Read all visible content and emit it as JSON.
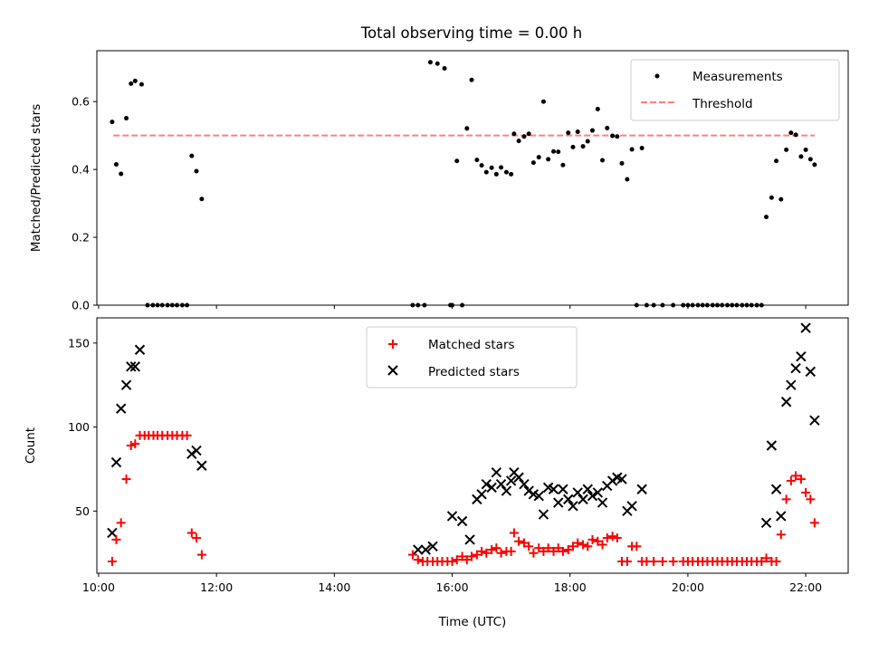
{
  "title": "Total observing time = 0.00 h",
  "colors": {
    "threshold": "#ff7f7f",
    "matched": "#ff0000",
    "predicted": "#000000",
    "measurement": "#000000"
  },
  "chart_data": [
    {
      "type": "scatter",
      "ylabel": "Matched/Predicted stars",
      "xlim_hours": [
        9.97,
        22.72
      ],
      "ylim": [
        0,
        0.75
      ],
      "yticks": [
        0.0,
        0.2,
        0.4,
        0.6
      ],
      "ytick_labels": [
        "0.0",
        "0.2",
        "0.4",
        "0.6"
      ],
      "xtick_hours": [
        10,
        12,
        14,
        16,
        18,
        20,
        22
      ],
      "legend": {
        "placement": "upper right",
        "entries": [
          "Measurements",
          "Threshold"
        ]
      },
      "threshold": {
        "name": "Threshold",
        "y": 0.5,
        "x_start_hour": 10.25,
        "x_end_hour": 22.15
      },
      "measurements": {
        "name": "Measurements",
        "x_hours": [
          10.23,
          10.3,
          10.38,
          10.47,
          10.55,
          10.62,
          10.73,
          10.83,
          10.92,
          11.0,
          11.08,
          11.17,
          11.25,
          11.33,
          11.42,
          11.5,
          11.58,
          11.66,
          11.75,
          15.33,
          15.42,
          15.53,
          15.63,
          15.75,
          15.87,
          15.97,
          16.0,
          16.08,
          16.17,
          16.25,
          16.33,
          16.42,
          16.5,
          16.58,
          16.67,
          16.75,
          16.83,
          16.92,
          17.0,
          17.05,
          17.13,
          17.22,
          17.3,
          17.38,
          17.47,
          17.55,
          17.63,
          17.72,
          17.8,
          17.88,
          17.97,
          18.05,
          18.13,
          18.22,
          18.3,
          18.38,
          18.47,
          18.55,
          18.63,
          18.72,
          18.8,
          18.88,
          18.97,
          19.05,
          19.13,
          19.22,
          19.3,
          19.42,
          19.57,
          19.75,
          19.92,
          20.0,
          20.08,
          20.17,
          20.25,
          20.33,
          20.42,
          20.5,
          20.58,
          20.67,
          20.75,
          20.83,
          20.92,
          21.0,
          21.08,
          21.17,
          21.25,
          21.33,
          21.42,
          21.5,
          21.58,
          21.67,
          21.75,
          21.83,
          21.92,
          22.0,
          22.08,
          22.15
        ],
        "y": [
          0.54,
          0.415,
          0.387,
          0.551,
          0.653,
          0.661,
          0.651,
          0.0,
          0.0,
          0.0,
          0.0,
          0.0,
          0.0,
          0.0,
          0.0,
          0.0,
          0.44,
          0.395,
          0.313,
          0.0,
          0.0,
          0.0,
          0.716,
          0.712,
          0.698,
          0.0,
          0.0,
          0.425,
          0.0,
          0.521,
          0.664,
          0.428,
          0.412,
          0.392,
          0.405,
          0.386,
          0.406,
          0.392,
          0.386,
          0.505,
          0.484,
          0.497,
          0.505,
          0.42,
          0.436,
          0.6,
          0.43,
          0.453,
          0.452,
          0.413,
          0.508,
          0.466,
          0.511,
          0.468,
          0.483,
          0.515,
          0.578,
          0.427,
          0.522,
          0.499,
          0.497,
          0.418,
          0.371,
          0.459,
          0.0,
          0.463,
          0.0,
          0.0,
          0.0,
          0.0,
          0.0,
          0.0,
          0.0,
          0.0,
          0.0,
          0.0,
          0.0,
          0.0,
          0.0,
          0.0,
          0.0,
          0.0,
          0.0,
          0.0,
          0.0,
          0.0,
          0.0,
          0.26,
          0.317,
          0.425,
          0.312,
          0.458,
          0.508,
          0.502,
          0.438,
          0.458,
          0.43,
          0.414
        ]
      }
    },
    {
      "type": "scatter",
      "xlabel": "Time (UTC)",
      "ylabel": "Count",
      "xlim_hours": [
        9.97,
        22.72
      ],
      "ylim": [
        13,
        165
      ],
      "yticks": [
        50,
        100,
        150
      ],
      "ytick_labels": [
        "50",
        "100",
        "150"
      ],
      "xtick_hours": [
        10,
        12,
        14,
        16,
        18,
        20,
        22
      ],
      "xtick_labels": [
        "10:00",
        "12:00",
        "14:00",
        "16:00",
        "18:00",
        "20:00",
        "22:00"
      ],
      "legend": {
        "placement": "upper center",
        "entries": [
          "Matched stars",
          "Predicted stars"
        ]
      },
      "matched": {
        "name": "Matched stars",
        "x_hours": [
          10.23,
          10.3,
          10.38,
          10.47,
          10.55,
          10.62,
          10.7,
          10.78,
          10.85,
          10.93,
          11.0,
          11.08,
          11.17,
          11.25,
          11.33,
          11.42,
          11.5,
          11.58,
          11.66,
          11.75,
          15.33,
          15.42,
          15.5,
          15.58,
          15.67,
          15.75,
          15.83,
          15.92,
          16.0,
          16.08,
          16.17,
          16.25,
          16.33,
          16.42,
          16.5,
          16.58,
          16.67,
          16.75,
          16.83,
          16.92,
          17.0,
          17.05,
          17.13,
          17.22,
          17.3,
          17.38,
          17.47,
          17.55,
          17.63,
          17.72,
          17.8,
          17.88,
          17.97,
          18.05,
          18.13,
          18.22,
          18.3,
          18.38,
          18.47,
          18.55,
          18.63,
          18.72,
          18.8,
          18.88,
          18.97,
          19.05,
          19.13,
          19.22,
          19.3,
          19.42,
          19.57,
          19.75,
          19.92,
          20.0,
          20.08,
          20.17,
          20.25,
          20.33,
          20.42,
          20.5,
          20.58,
          20.67,
          20.75,
          20.83,
          20.92,
          21.0,
          21.08,
          21.17,
          21.25,
          21.33,
          21.42,
          21.5,
          21.58,
          21.67,
          21.75,
          21.83,
          21.92,
          22.0,
          22.08,
          22.15
        ],
        "y": [
          20,
          33,
          43,
          69,
          89,
          90,
          95,
          95,
          95,
          95,
          95,
          95,
          95,
          95,
          95,
          95,
          95,
          37,
          34,
          24,
          24,
          21,
          20,
          20,
          20,
          20,
          20,
          20,
          20,
          21,
          23,
          21,
          23,
          24,
          26,
          25,
          27,
          28,
          25,
          26,
          26,
          37,
          32,
          31,
          29,
          25,
          28,
          26,
          28,
          26,
          28,
          26,
          27,
          29,
          31,
          30,
          29,
          33,
          32,
          30,
          34,
          35,
          34,
          20,
          20,
          29,
          29,
          20,
          20,
          20,
          20,
          20,
          20,
          20,
          20,
          20,
          20,
          20,
          20,
          20,
          20,
          20,
          20,
          20,
          20,
          20,
          20,
          20,
          20,
          22,
          20,
          20,
          36,
          57,
          68,
          71,
          69,
          61,
          57,
          43
        ]
      },
      "predicted": {
        "name": "Predicted stars",
        "x_hours": [
          10.23,
          10.3,
          10.38,
          10.47,
          10.55,
          10.62,
          10.7,
          11.58,
          11.66,
          11.75,
          15.42,
          15.55,
          15.67,
          16.0,
          16.17,
          16.3,
          16.42,
          16.5,
          16.58,
          16.67,
          16.75,
          16.83,
          16.92,
          17.0,
          17.05,
          17.13,
          17.22,
          17.3,
          17.38,
          17.47,
          17.55,
          17.63,
          17.72,
          17.8,
          17.88,
          17.97,
          18.05,
          18.13,
          18.22,
          18.3,
          18.38,
          18.47,
          18.55,
          18.63,
          18.72,
          18.8,
          18.88,
          18.97,
          19.05,
          19.22,
          21.33,
          21.42,
          21.5,
          21.58,
          21.67,
          21.75,
          21.83,
          21.92,
          22.0,
          22.08,
          22.15
        ],
        "y": [
          37,
          79,
          111,
          125,
          136,
          136,
          146,
          84,
          86,
          77,
          27,
          27,
          29,
          47,
          44,
          33,
          57,
          60,
          66,
          64,
          73,
          66,
          62,
          68,
          73,
          70,
          66,
          62,
          60,
          59,
          48,
          64,
          63,
          55,
          63,
          57,
          53,
          61,
          57,
          63,
          59,
          61,
          55,
          65,
          68,
          70,
          69,
          50,
          53,
          63,
          43,
          89,
          63,
          47,
          115,
          125,
          135,
          142,
          159,
          133,
          104
        ]
      }
    }
  ]
}
